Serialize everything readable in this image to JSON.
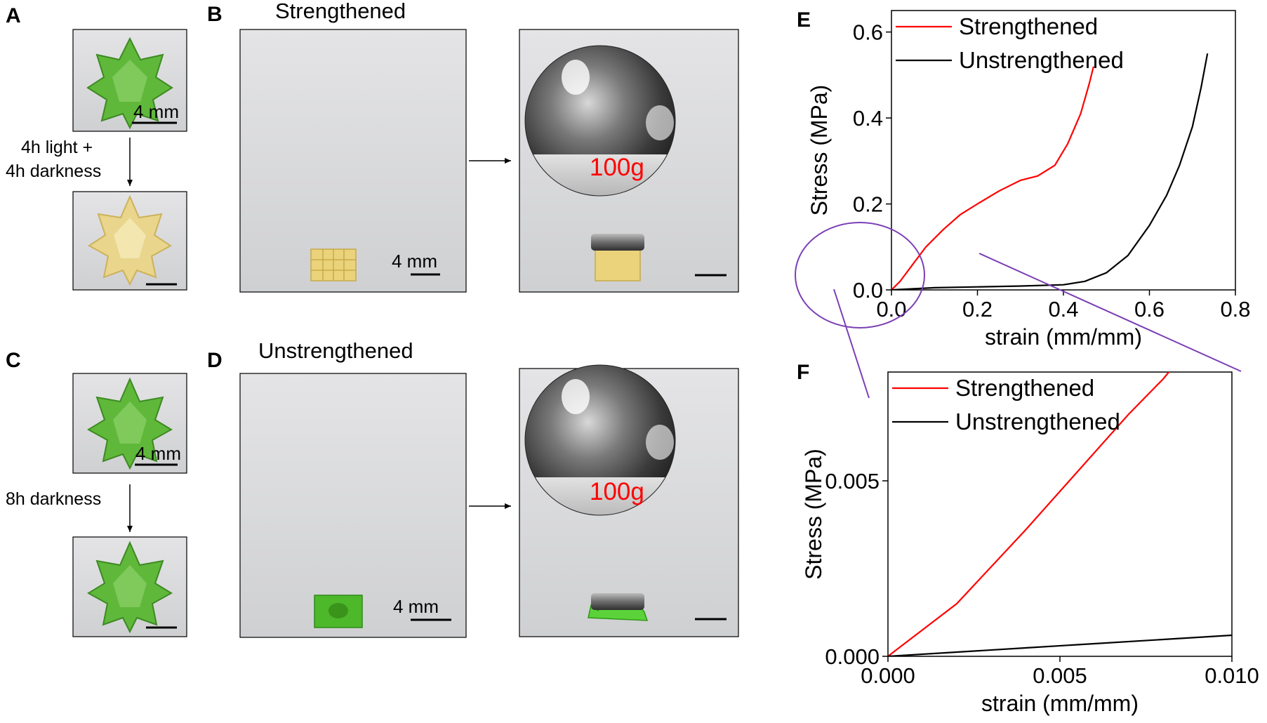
{
  "panels": {
    "a": "A",
    "b": "B",
    "c": "C",
    "d": "D",
    "e": "E",
    "f": "F"
  },
  "panel_a": {
    "scale_label": "4 mm",
    "step_line1": "4h light +",
    "step_line2": "4h darkness"
  },
  "panel_b": {
    "title": "Strengthened",
    "scale_label": "4 mm",
    "weight_label": "100g"
  },
  "panel_c": {
    "scale_label": "4 mm",
    "step": "8h darkness"
  },
  "panel_d": {
    "title": "Unstrengthened",
    "scale_label": "4 mm",
    "weight_label": "100g"
  },
  "colors": {
    "strengthened": "#ff0000",
    "unstrengthened": "#000000",
    "zoom_marker": "#7b3fb5",
    "resin_green": "#5fb83a",
    "resin_yellow": "#e9d58c"
  },
  "chart_data": [
    {
      "type": "line",
      "panel": "E",
      "xlabel": "strain (mm/mm)",
      "ylabel": "Stress (MPa)",
      "xlim": [
        0,
        0.8
      ],
      "ylim": [
        0,
        0.65
      ],
      "xticks": [
        0.0,
        0.2,
        0.4,
        0.6,
        0.8
      ],
      "xtick_labels": [
        "0.0",
        "0.2",
        "0.4",
        "0.6",
        "0.8"
      ],
      "yticks": [
        0.0,
        0.2,
        0.4,
        0.6
      ],
      "ytick_labels": [
        "0.0",
        "0.2",
        "0.4",
        "0.6"
      ],
      "legend": "top-left",
      "series": [
        {
          "name": "Strengthened",
          "x": [
            0,
            0.02,
            0.05,
            0.08,
            0.12,
            0.16,
            0.2,
            0.25,
            0.3,
            0.34,
            0.38,
            0.41,
            0.44,
            0.46,
            0.47
          ],
          "y": [
            0,
            0.02,
            0.06,
            0.1,
            0.14,
            0.175,
            0.2,
            0.23,
            0.255,
            0.265,
            0.29,
            0.34,
            0.41,
            0.48,
            0.52
          ]
        },
        {
          "name": "Unstrengthened",
          "x": [
            0,
            0.1,
            0.2,
            0.3,
            0.4,
            0.45,
            0.5,
            0.55,
            0.6,
            0.64,
            0.67,
            0.7,
            0.72,
            0.735
          ],
          "y": [
            0,
            0.005,
            0.007,
            0.009,
            0.012,
            0.02,
            0.04,
            0.08,
            0.15,
            0.22,
            0.29,
            0.38,
            0.47,
            0.55
          ]
        }
      ]
    },
    {
      "type": "line",
      "panel": "F",
      "xlabel": "strain (mm/mm)",
      "ylabel": "Stress (MPa)",
      "xlim": [
        0,
        0.01
      ],
      "ylim": [
        0,
        0.0081
      ],
      "xticks": [
        0.0,
        0.005,
        0.01
      ],
      "xtick_labels": [
        "0.000",
        "0.005",
        "0.010"
      ],
      "yticks": [
        0.0,
        0.005
      ],
      "ytick_labels": [
        "0.000",
        "0.005"
      ],
      "legend": "top-left",
      "series": [
        {
          "name": "Strengthened",
          "x": [
            0,
            0.001,
            0.002,
            0.003,
            0.004,
            0.005,
            0.006,
            0.007,
            0.008,
            0.0085
          ],
          "y": [
            0,
            0.00075,
            0.0015,
            0.00255,
            0.0036,
            0.0047,
            0.0058,
            0.0069,
            0.0079,
            0.0085
          ]
        },
        {
          "name": "Unstrengthened",
          "x": [
            0,
            0.002,
            0.004,
            0.006,
            0.008,
            0.01
          ],
          "y": [
            0,
            0.00012,
            0.00024,
            0.00036,
            0.00048,
            0.0006
          ]
        }
      ]
    }
  ]
}
